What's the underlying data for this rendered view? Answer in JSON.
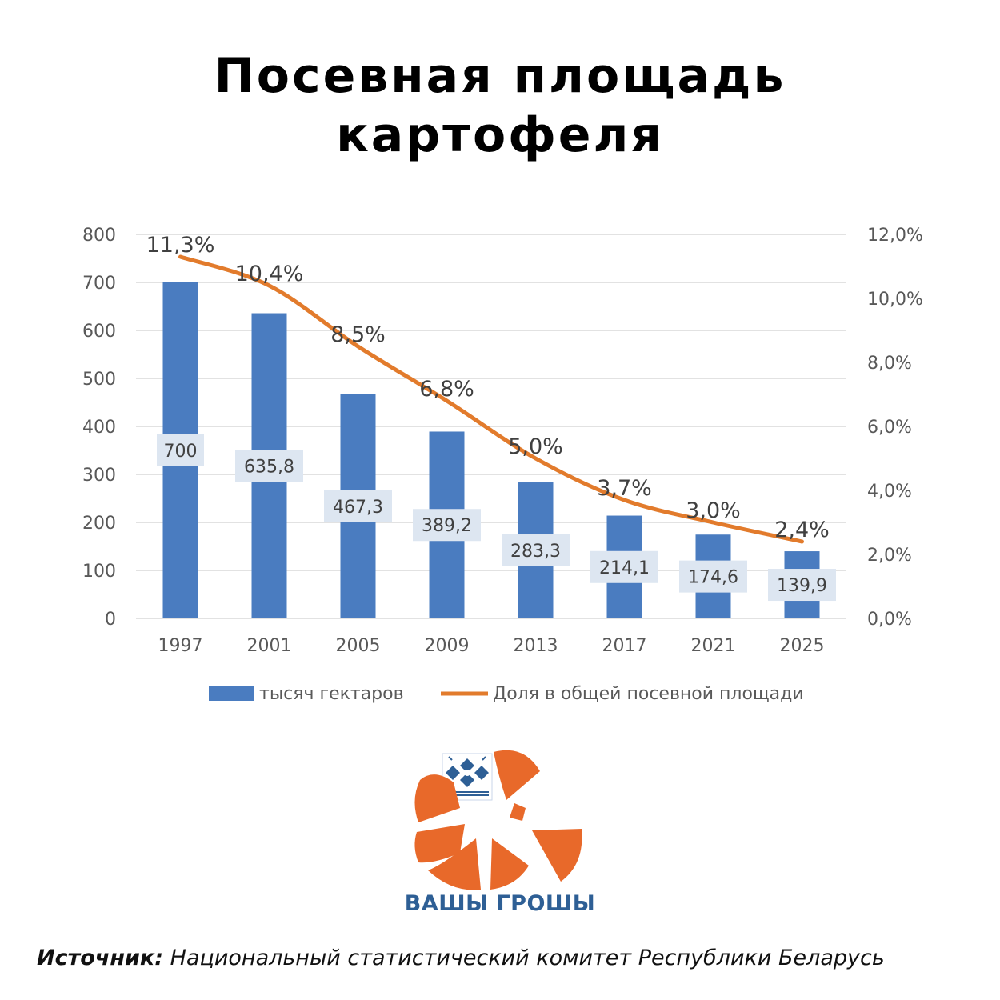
{
  "title": {
    "line1": "Посевная площадь",
    "line2": "картофеля"
  },
  "chart_data": {
    "type": "bar",
    "categories": [
      "1997",
      "2001",
      "2005",
      "2009",
      "2013",
      "2017",
      "2021",
      "2025"
    ],
    "series": [
      {
        "name": "тысяч гектаров",
        "type": "bar",
        "axis": "left",
        "color": "#4a7cc0",
        "values": [
          700,
          635.8,
          467.3,
          389.2,
          283.3,
          214.1,
          174.6,
          139.9
        ],
        "labels": [
          "700",
          "635,8",
          "467,3",
          "389,2",
          "283,3",
          "214,1",
          "174,6",
          "139,9"
        ]
      },
      {
        "name": "Доля в общей посевной площади",
        "type": "line",
        "axis": "right",
        "color": "#e27b2c",
        "values": [
          11.3,
          10.4,
          8.5,
          6.8,
          5.0,
          3.7,
          3.0,
          2.4
        ],
        "labels": [
          "11,3%",
          "10,4%",
          "8,5%",
          "6,8%",
          "5,0%",
          "3,7%",
          "3,0%",
          "2,4%"
        ]
      }
    ],
    "y_left": {
      "ylim": [
        0,
        800
      ],
      "ticks": [
        "0",
        "100",
        "200",
        "300",
        "400",
        "500",
        "600",
        "700",
        "800"
      ]
    },
    "y_right": {
      "ylim": [
        0,
        12
      ],
      "ticks": [
        "0,0%",
        "2,0%",
        "4,0%",
        "6,0%",
        "8,0%",
        "10,0%",
        "12,0%"
      ]
    },
    "grid": true,
    "legend_position": "bottom"
  },
  "logo": {
    "text": "ВАШЫ ГРОШЫ"
  },
  "source": {
    "label": "Источник:",
    "text": " Национальный статистический комитет Республики Беларусь"
  }
}
